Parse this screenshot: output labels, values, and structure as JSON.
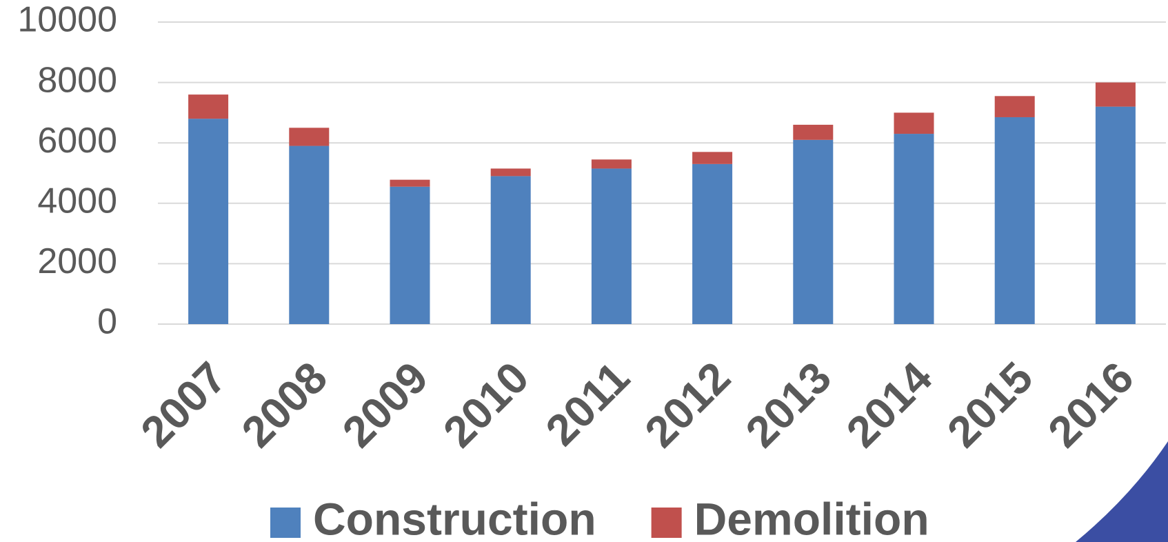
{
  "chart_data": {
    "type": "bar",
    "stacked": true,
    "categories": [
      "2007",
      "2008",
      "2009",
      "2010",
      "2011",
      "2012",
      "2013",
      "2014",
      "2015",
      "2016"
    ],
    "series": [
      {
        "name": "Construction",
        "color": "#4f81bd",
        "values": [
          6800,
          5900,
          4550,
          4900,
          5150,
          5300,
          6100,
          6300,
          6850,
          7200
        ]
      },
      {
        "name": "Demolition",
        "color": "#c0504d",
        "values": [
          800,
          600,
          230,
          250,
          300,
          400,
          500,
          700,
          700,
          800
        ]
      }
    ],
    "ylim": [
      0,
      10000
    ],
    "yticks": [
      0,
      2000,
      4000,
      6000,
      8000,
      10000
    ],
    "grid": true,
    "legend": "bottom"
  }
}
